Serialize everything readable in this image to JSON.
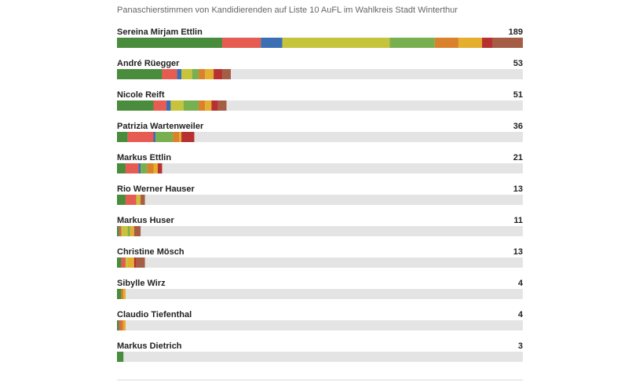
{
  "colors": {
    "track": "#e4e4e4",
    "rule": "#d6d6d6",
    "palette": [
      "#4a8c3d",
      "#e65b52",
      "#3a6fb4",
      "#c6c43a",
      "#78b050",
      "#d9822b",
      "#e4ae2e",
      "#b73131",
      "#a55d45"
    ]
  },
  "chart_data": {
    "type": "bar",
    "title": "Panaschierstimmen von Kandidierenden auf Liste 10 AuFL im Wahlkreis Stadt Winterthur",
    "xlim": [
      0,
      189
    ],
    "legend": "none",
    "grid": false,
    "stacked": true,
    "categories": [
      "Sereina Mirjam Ettlin",
      "André Rüegger",
      "Nicole Reift",
      "Patrizia Wartenweiler",
      "Markus Ettlin",
      "Rio Werner Hauser",
      "Markus Huser",
      "Christine Mösch",
      "Sibylle Wirz",
      "Claudio Tiefenthal",
      "Markus Dietrich"
    ],
    "totals": [
      189,
      53,
      51,
      36,
      21,
      13,
      11,
      13,
      4,
      4,
      3
    ],
    "segments": [
      [
        49,
        18,
        10,
        50,
        21,
        11,
        11,
        5,
        14
      ],
      [
        21,
        7,
        2,
        5,
        3,
        3,
        4,
        4,
        4
      ],
      [
        17,
        6,
        2,
        6,
        7,
        3,
        3,
        3,
        4
      ],
      [
        5,
        12,
        1,
        0,
        8,
        3,
        1,
        6,
        0
      ],
      [
        4,
        6,
        1,
        0,
        3,
        3,
        2,
        2,
        0
      ],
      [
        4,
        5,
        0,
        1,
        0,
        0,
        1,
        0,
        2
      ],
      [
        1,
        1,
        0,
        3,
        1,
        0,
        2,
        0,
        3
      ],
      [
        2,
        2,
        0,
        1,
        0,
        0,
        3,
        1,
        4
      ],
      [
        2,
        0,
        0,
        0,
        0,
        1,
        1,
        0,
        0
      ],
      [
        1,
        1,
        0,
        0,
        0,
        1,
        1,
        0,
        0
      ],
      [
        3,
        0,
        0,
        0,
        0,
        0,
        0,
        0,
        0
      ]
    ]
  }
}
